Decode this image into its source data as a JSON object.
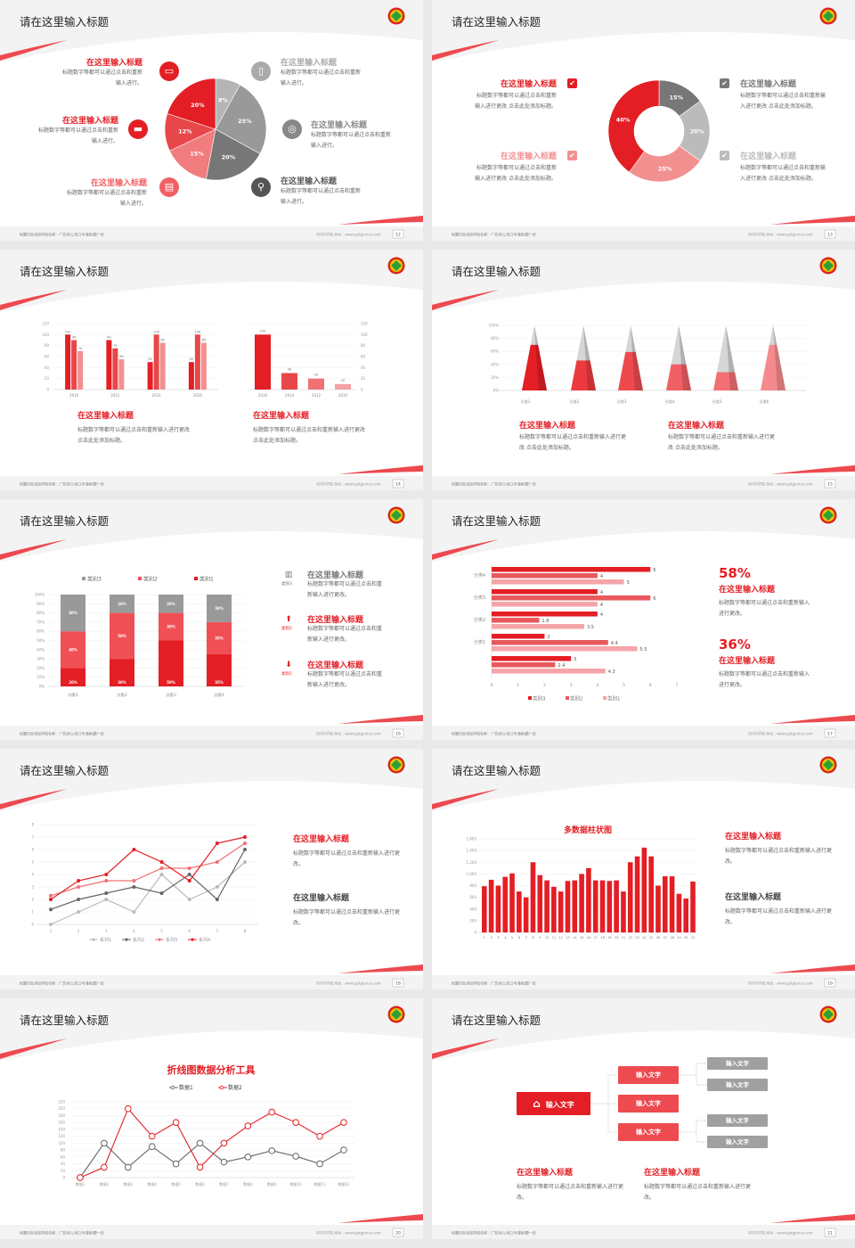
{
  "common": {
    "title": "请在这里输入标题",
    "footer_left": "标题栏处添加学校名称：广告词/公司口号/副标题一页",
    "footer_right": "XXXX学院  网址：www.pptgenius.com",
    "colors": {
      "red": "#e31e24",
      "red2": "#e8474a",
      "pink": "#f29090",
      "gray_dark": "#777777",
      "gray": "#999999",
      "gray_light": "#bbbbbb"
    }
  },
  "slides": [
    {
      "page": "12",
      "pie": {
        "values": [
          8,
          25,
          20,
          15,
          12,
          20
        ],
        "labels": [
          "8%",
          "25%",
          "20%",
          "15%",
          "12%",
          "20%"
        ],
        "colors": [
          "#b5b5b5",
          "#999999",
          "#777777",
          "#f07c7e",
          "#e8474a",
          "#e31e24"
        ]
      },
      "left_items": [
        {
          "heading": "在这里输入标题",
          "text": "标题数字等都可以通过点击和重新输入进行。",
          "icon": "monitor-icon"
        },
        {
          "heading": "在这里输入标题",
          "text": "标题数字等都可以通过点击和重新输入进行。",
          "icon": "car-icon"
        },
        {
          "heading": "在这里输入标题",
          "text": "标题数字等都可以通过点击和重新输入进行。",
          "icon": "book-icon"
        }
      ],
      "right_items": [
        {
          "heading": "在这里输入标题",
          "text": "标题数字等都可以通过点击和重新输入进行。",
          "icon": "phone-icon"
        },
        {
          "heading": "在这里输入标题",
          "text": "标题数字等都可以通过点击和重新输入进行。",
          "icon": "binoculars-icon"
        },
        {
          "heading": "在这里输入标题",
          "text": "标题数字等都可以通过点击和重新输入进行。",
          "icon": "bicycle-icon"
        }
      ]
    },
    {
      "page": "13",
      "donut": {
        "values": [
          15,
          20,
          25,
          40
        ],
        "labels": [
          "15%",
          "20%",
          "25%",
          "40%"
        ],
        "colors": [
          "#777777",
          "#bbbbbb",
          "#f29090",
          "#e31e24"
        ]
      },
      "items": [
        {
          "heading": "在这里输入标题",
          "text": "标题数字等都可以通过点击和重新输入进行更改 点击此处添加标题。"
        },
        {
          "heading": "在这里输入标题",
          "text": "标题数字等都可以通过点击和重新输入进行更改 点击此处添加标题。"
        },
        {
          "heading": "在这里输入标题",
          "text": "标题数字等都可以通过点击和重新输入进行更改 点击此处添加标题。"
        },
        {
          "heading": "在这里输入标题",
          "text": "标题数字等都可以通过点击和重新输入进行更改 点击此处添加标题。"
        }
      ]
    },
    {
      "page": "14",
      "items": [
        {
          "heading": "在这里输入标题",
          "text": "标题数字等都可以通过点击和重新输入进行更改 点击此处添加标题。"
        },
        {
          "heading": "在这里输入标题",
          "text": "标题数字等都可以通过点击和重新输入进行更改 点击此处添加标题。"
        }
      ]
    },
    {
      "page": "15",
      "items": [
        {
          "heading": "在这里输入标题",
          "text": "标题数字等都可以通过点击和重新输入进行更改 点击此处添加标题。"
        },
        {
          "heading": "在这里输入标题",
          "text": "标题数字等都可以通过点击和重新输入进行更改 点击此处添加标题。"
        }
      ]
    },
    {
      "page": "16",
      "items": [
        {
          "heading": "在这里输入标题",
          "text": "标题数字等都可以通过点击和重新输入进行更改。",
          "icon": "bar-chart-icon",
          "tag": "类别3"
        },
        {
          "heading": "在这里输入标题",
          "text": "标题数字等都可以通过点击和重新输入进行更改。",
          "icon": "upload-icon",
          "tag": "类别2"
        },
        {
          "heading": "在这里输入标题",
          "text": "标题数字等都可以通过点击和重新输入进行更改。",
          "icon": "download-icon",
          "tag": "类别1"
        }
      ]
    },
    {
      "page": "17",
      "stats": [
        {
          "value": "58%",
          "heading": "在这里输入标题",
          "text": "标题数字等都可以通过点击和重新输入进行更改。"
        },
        {
          "value": "36%",
          "heading": "在这里输入标题",
          "text": "标题数字等都可以通过点击和重新输入进行更改。"
        }
      ]
    },
    {
      "page": "18",
      "items": [
        {
          "heading": "在这里输入标题",
          "text": "标题数字等都可以通过点击和重新输入进行更改。"
        },
        {
          "heading": "在这里输入标题",
          "text": "标题数字等都可以通过点击和重新输入进行更改。"
        }
      ]
    },
    {
      "page": "19",
      "items": [
        {
          "heading": "在这里输入标题",
          "text": "标题数字等都可以通过点击和重新输入进行更改。"
        },
        {
          "heading": "在这里输入标题",
          "text": "标题数字等都可以通过点击和重新输入进行更改。"
        }
      ]
    },
    {
      "page": "20"
    },
    {
      "page": "21",
      "root": "输入文字",
      "mid": [
        "输入文字",
        "输入文字",
        "输入文字"
      ],
      "leaves": [
        "输入文字",
        "输入文字",
        "输入文字",
        "输入文字"
      ],
      "items": [
        {
          "heading": "在这里输入标题",
          "text": "标题数字等都可以通过点击和重新输入进行更改。"
        },
        {
          "heading": "在这里输入标题",
          "text": "标题数字等都可以通过点击和重新输入进行更改。"
        }
      ]
    }
  ],
  "chart_data": [
    {
      "type": "bar",
      "categories": [
        "2010",
        "2012",
        "2014",
        "2016"
      ],
      "series": [
        {
          "values": [
            100,
            90,
            50,
            50
          ]
        },
        {
          "values": [
            90,
            75,
            100,
            100
          ]
        },
        {
          "values": [
            70,
            55,
            85,
            85
          ]
        }
      ],
      "ylim": [
        0,
        120
      ],
      "yticks": [
        "0",
        "20",
        "40",
        "60",
        "80",
        "100",
        "120"
      ],
      "colors": [
        "#e31e24",
        "#e8474a",
        "#f29090"
      ]
    },
    {
      "type": "bar",
      "categories": [
        "2016",
        "2014",
        "2012",
        "2010"
      ],
      "values": [
        100,
        30,
        20,
        10
      ],
      "ylim": [
        0,
        120
      ],
      "yticks": [
        "0",
        "20",
        "40",
        "60",
        "80",
        "100",
        "120"
      ],
      "colors": [
        "#e31e24",
        "#e8474a",
        "#f07074",
        "#f5a0a4"
      ]
    },
    {
      "type": "bar",
      "subtype": "3d-cone",
      "categories": [
        "分类1",
        "分类2",
        "分类3",
        "分类4",
        "分类5",
        "分类6"
      ],
      "values": [
        70,
        46,
        59,
        40,
        28,
        70
      ],
      "ylim": [
        0,
        100
      ],
      "yticks": [
        "0%",
        "20%",
        "40%",
        "60%",
        "80%",
        "100%"
      ],
      "colors": [
        "#e31e24",
        "#ec3a3e",
        "#ee4a4e",
        "#f06064",
        "#f27074",
        "#f58a8e"
      ]
    },
    {
      "type": "bar",
      "subtype": "stacked-100",
      "categories": [
        "分类1",
        "分类2",
        "分类3",
        "分类4"
      ],
      "series": [
        {
          "name": "类别1",
          "values": [
            20,
            30,
            50,
            35
          ],
          "labels": [
            "20%",
            "30%",
            "50%",
            "35%"
          ]
        },
        {
          "name": "类别2",
          "values": [
            40,
            50,
            30,
            35
          ],
          "labels": [
            "40%",
            "50%",
            "30%",
            "35%"
          ]
        },
        {
          "name": "类别3",
          "values": [
            40,
            20,
            20,
            30
          ],
          "labels": [
            "40%",
            "20%",
            "20%",
            "30%"
          ]
        }
      ],
      "yticks": [
        "0%",
        "10%",
        "20%",
        "30%",
        "40%",
        "50%",
        "60%",
        "70%",
        "80%",
        "90%",
        "100%"
      ],
      "legend": "top",
      "colors": [
        "#e31e24",
        "#f05055",
        "#999999"
      ]
    },
    {
      "type": "bar",
      "orientation": "horizontal",
      "categories": [
        "分类4",
        "分类3",
        "分类2",
        "分类1",
        ""
      ],
      "series": [
        {
          "name": "类别3",
          "values": [
            6,
            4,
            4,
            2,
            3
          ],
          "labels": [
            "6",
            "4",
            "4",
            "2",
            "3"
          ]
        },
        {
          "name": "类别2",
          "values": [
            4,
            6,
            1.8,
            4.4,
            2.4
          ],
          "labels": [
            "4",
            "6",
            "1.8",
            "4.4",
            "2.4"
          ]
        },
        {
          "name": "类别1",
          "values": [
            5,
            4,
            3.5,
            5.5,
            4.3
          ],
          "labels": [
            "5",
            "4",
            "3.5",
            "5.5",
            "4.3"
          ]
        }
      ],
      "xlim": [
        0,
        7
      ],
      "xticks": [
        "0",
        "1",
        "2",
        "3",
        "4",
        "5",
        "6",
        "7"
      ],
      "legend": "bottom",
      "colors": [
        "#e31e24",
        "#e8585c",
        "#f5a5a8"
      ]
    },
    {
      "type": "line",
      "x": [
        "1",
        "2",
        "3",
        "4",
        "5",
        "6",
        "7",
        "8"
      ],
      "series": [
        {
          "name": "系列1",
          "values": [
            0,
            1,
            2,
            1,
            4,
            2,
            3,
            5
          ]
        },
        {
          "name": "系列2",
          "values": [
            1.2,
            2,
            2.5,
            3,
            2.5,
            4,
            2,
            6
          ]
        },
        {
          "name": "系列3",
          "values": [
            2.3,
            3,
            3.5,
            3.5,
            4.5,
            4.5,
            5,
            6.5
          ]
        },
        {
          "name": "系列4",
          "values": [
            2,
            3.5,
            4,
            6,
            5,
            3.5,
            6.5,
            7
          ]
        }
      ],
      "ylim": [
        0,
        8
      ],
      "yticks": [
        "0",
        "1",
        "2",
        "3",
        "4",
        "5",
        "6",
        "7",
        "8"
      ],
      "legend": "bottom",
      "colors": [
        "#bbbbbb",
        "#666666",
        "#f07074",
        "#e31e24"
      ]
    },
    {
      "type": "bar",
      "title": "多数据柱状图",
      "categories": [
        "1",
        "2",
        "3",
        "4",
        "5",
        "6",
        "7",
        "8",
        "9",
        "10",
        "11",
        "12",
        "13",
        "14",
        "15",
        "16",
        "17",
        "18",
        "19",
        "20",
        "21",
        "22",
        "23",
        "24",
        "25",
        "26",
        "27",
        "28",
        "29",
        "30",
        "31"
      ],
      "values": [
        790,
        900,
        800,
        950,
        1010,
        700,
        600,
        1200,
        980,
        890,
        780,
        700,
        880,
        890,
        1000,
        1100,
        890,
        890,
        880,
        890,
        700,
        1200,
        1300,
        1450,
        1300,
        800,
        960,
        960,
        660,
        580,
        870
      ],
      "ylim": [
        0,
        1600
      ],
      "yticks": [
        "0",
        "200",
        "400",
        "600",
        "800",
        "1,000",
        "1,200",
        "1,400",
        "1,600"
      ],
      "colors": [
        "#e31e24"
      ]
    },
    {
      "type": "line",
      "title": "折线图数据分析工具",
      "x": [
        "数据1",
        "数据2",
        "数据3",
        "数据4",
        "数据5",
        "数据6",
        "数据7",
        "数据8",
        "数据9",
        "数据10",
        "数据11",
        "数据12"
      ],
      "series": [
        {
          "name": "数据1",
          "values": [
            0,
            100,
            30,
            90,
            40,
            100,
            45,
            60,
            78,
            62,
            40,
            80
          ]
        },
        {
          "name": "数据2",
          "values": [
            0,
            30,
            200,
            120,
            160,
            30,
            100,
            150,
            190,
            160,
            120,
            160
          ]
        }
      ],
      "ylim": [
        0,
        220
      ],
      "yticks": [
        "0",
        "20",
        "40",
        "60",
        "80",
        "100",
        "120",
        "140",
        "160",
        "180",
        "200",
        "220"
      ],
      "legend": "top",
      "colors": [
        "#666666",
        "#e31e24"
      ]
    }
  ]
}
